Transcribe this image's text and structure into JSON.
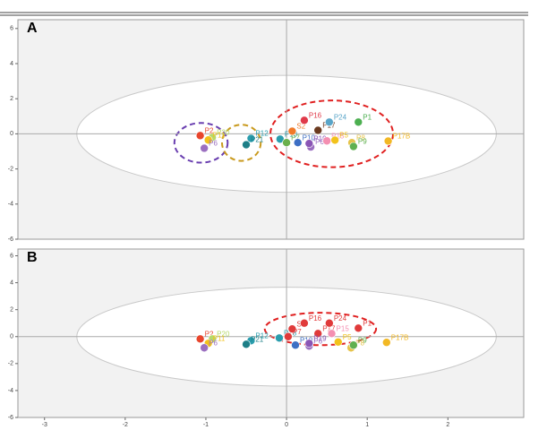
{
  "chart_data": [
    {
      "type": "scatter",
      "label": "A",
      "x": [
        -1.07,
        -0.92,
        -0.97,
        -1.02,
        -0.44,
        -0.5,
        -0.08,
        0.0,
        0.14,
        0.07,
        0.22,
        0.39,
        0.53,
        0.89,
        0.3,
        0.28,
        0.5,
        0.6,
        0.81,
        0.83,
        1.26
      ],
      "values": [
        -0.1,
        -0.2,
        -0.35,
        -0.82,
        -0.26,
        -0.62,
        -0.3,
        -0.5,
        -0.5,
        0.15,
        0.77,
        0.2,
        0.67,
        0.67,
        -0.75,
        -0.55,
        -0.4,
        -0.36,
        -0.5,
        -0.72,
        -0.41
      ],
      "labels": [
        "P2",
        "P20",
        "P11",
        "P6",
        "P12",
        "P21",
        "P18",
        "P7",
        "P10",
        "S2",
        "P16",
        "P17",
        "P24",
        "P1",
        "P6",
        "P19",
        "P15",
        "P5",
        "P8",
        "P9",
        "P17B"
      ],
      "colors": [
        "#e8452c",
        "#b5d96b",
        "#f2c21b",
        "#9b6fc0",
        "#2a9dad",
        "#1d7f87",
        "#2a9dad",
        "#6ab04c",
        "#3d6fc4",
        "#f07a2a",
        "#e03a4a",
        "#6b3a1f",
        "#5aa5c8",
        "#4caf50",
        "#9b6fc0",
        "#8a55b5",
        "#f48fb1",
        "#f2c21b",
        "#e5c34a",
        "#5fb04f",
        "#f2b824"
      ],
      "xlim": [
        -3.33,
        2.94
      ],
      "ylim": [
        -6,
        6.5
      ],
      "yticks": [
        -6,
        -4,
        -2,
        0,
        2,
        4,
        6
      ],
      "ellipses": [
        {
          "cx": 0,
          "cy": 0,
          "rx": 2.6,
          "ry": 3.33,
          "color": "#c8c8c8",
          "dashed": false
        },
        {
          "cx": -1.06,
          "cy": -0.51,
          "rx": 0.33,
          "ry": 1.13,
          "color": "#6a3fb0",
          "dashed": true
        },
        {
          "cx": -0.56,
          "cy": -0.51,
          "rx": 0.24,
          "ry": 1.03,
          "color": "#c99a1e",
          "dashed": true
        },
        {
          "cx": 0.56,
          "cy": 0,
          "rx": 0.76,
          "ry": 1.9,
          "color": "#e02020",
          "dashed": true
        }
      ]
    },
    {
      "type": "scatter",
      "label": "B",
      "x": [
        -1.07,
        -0.92,
        -0.97,
        -1.02,
        -0.44,
        -0.5,
        -0.09,
        0.11,
        0.28,
        0.39,
        0.53,
        0.89,
        0.07,
        0.02,
        0.22,
        0.28,
        0.56,
        0.64,
        0.8,
        0.83,
        1.24
      ],
      "values": [
        -0.17,
        -0.17,
        -0.5,
        -0.83,
        -0.3,
        -0.57,
        -0.1,
        -0.63,
        -0.7,
        0.23,
        1.0,
        0.63,
        0.57,
        0.0,
        1.0,
        -0.5,
        0.23,
        -0.4,
        -0.83,
        -0.63,
        -0.43
      ],
      "labels": [
        "P2",
        "P20",
        "P11",
        "P6",
        "P12",
        "P21",
        "P18",
        "P10",
        "P6",
        "P17",
        "P24",
        "P1",
        "S2",
        "P7",
        "P16",
        "P19",
        "P15",
        "P5",
        "P8",
        "P9",
        "P17B"
      ],
      "colors": [
        "#e8452c",
        "#b5d96b",
        "#f2c21b",
        "#9b6fc0",
        "#2a9dad",
        "#1d7f87",
        "#2a9dad",
        "#3d6fc4",
        "#9b6fc0",
        "#e03a3a",
        "#e03a3a",
        "#e03a3a",
        "#e03a3a",
        "#e03a3a",
        "#e03a3a",
        "#8a55b5",
        "#f48fb1",
        "#f2c21b",
        "#e5c34a",
        "#5fb04f",
        "#f2b824"
      ],
      "xlim": [
        -3.33,
        2.94
      ],
      "ylim": [
        -6,
        6.5
      ],
      "yticks": [
        -6,
        -4,
        -2,
        0,
        2,
        4,
        6
      ],
      "xticks": [
        -3,
        -2,
        -1,
        0,
        1,
        2
      ],
      "ellipses": [
        {
          "cx": 0,
          "cy": 0,
          "rx": 2.6,
          "ry": 3.67,
          "color": "#c8c8c8",
          "dashed": false
        },
        {
          "cx": 0.42,
          "cy": 0.57,
          "rx": 0.69,
          "ry": 1.2,
          "color": "#e02020",
          "dashed": true
        }
      ]
    }
  ]
}
